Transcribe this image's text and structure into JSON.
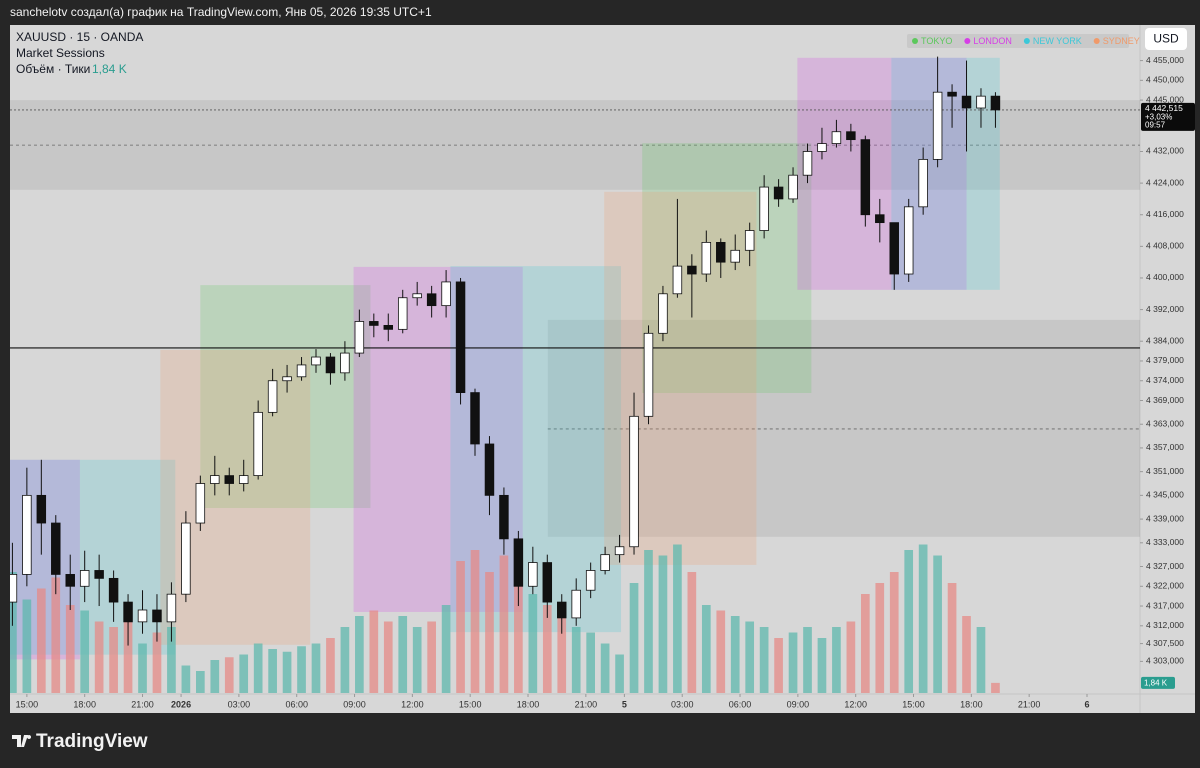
{
  "header": "sanchelotv создал(а) график на TradingView.com, Янв 05, 2026 19:35 UTC+1",
  "footer": "TradingView",
  "chart_data": {
    "type": "candlestick",
    "title": "XAUUSD · 15 · OANDA",
    "indicator": "Market Sessions",
    "currency": "USD",
    "up_color": "#ffffff",
    "down_color": "#111111",
    "grid": false,
    "x": [
      -3,
      0,
      3,
      6,
      9,
      12,
      15,
      18,
      21,
      24,
      27,
      30,
      33,
      36,
      39,
      42,
      45,
      48,
      51,
      54,
      57,
      60,
      63,
      66,
      69,
      72,
      75,
      78,
      81,
      84,
      87,
      90,
      93,
      96,
      99,
      102,
      105,
      108,
      111,
      114,
      117,
      120,
      123,
      126,
      129,
      132,
      135,
      138,
      141,
      144,
      147,
      150,
      153,
      156,
      159,
      162,
      165,
      168,
      171,
      174,
      177,
      180,
      183,
      186,
      189,
      192,
      195,
      198,
      201
    ],
    "open": [
      4318,
      4325,
      4345,
      4338,
      4325,
      4322,
      4326,
      4324,
      4318,
      4313,
      4316,
      4313,
      4320,
      4338,
      4348,
      4350,
      4348,
      4350,
      4366,
      4374,
      4375,
      4378,
      4380,
      4376,
      4381,
      4389,
      4388,
      4387,
      4395,
      4396,
      4393,
      4399,
      4371,
      4358,
      4345,
      4334,
      4322,
      4328,
      4318,
      4314,
      4321,
      4326,
      4330,
      4332,
      4365,
      4386,
      4396,
      4403,
      4401,
      4409,
      4404,
      4407,
      4412,
      4423,
      4420,
      4426,
      4432,
      4434,
      4437,
      4435,
      4416,
      4414,
      4401,
      4418,
      4430,
      4447,
      4446,
      4443,
      4446
    ],
    "high": [
      4333,
      4352,
      4354,
      4340,
      4330,
      4331,
      4330,
      4326,
      4320,
      4321,
      4320,
      4323,
      4341,
      4350,
      4355,
      4352,
      4354,
      4369,
      4377,
      4378,
      4380,
      4382,
      4381,
      4384,
      4392,
      4391,
      4391,
      4397,
      4399,
      4398,
      4402,
      4400,
      4372,
      4360,
      4347,
      4336,
      4332,
      4330,
      4320,
      4324,
      4328,
      4332,
      4335,
      4371,
      4388,
      4398,
      4420,
      4406,
      4412,
      4410,
      4411,
      4414,
      4426,
      4425,
      4428,
      4434,
      4438,
      4440,
      4439,
      4436,
      4420,
      4414,
      4420,
      4433,
      4456,
      4449,
      4455,
      4448,
      4447
    ],
    "low": [
      4312,
      4322,
      4330,
      4320,
      4316,
      4318,
      4317,
      4313,
      4307,
      4310,
      4308,
      4308,
      4318,
      4336,
      4345,
      4345,
      4346,
      4349,
      4365,
      4371,
      4374,
      4376,
      4373,
      4374,
      4380,
      4385,
      4384,
      4386,
      4393,
      4390,
      4390,
      4368,
      4355,
      4340,
      4330,
      4317,
      4320,
      4314,
      4310,
      4312,
      4319,
      4325,
      4328,
      4330,
      4363,
      4384,
      4395,
      4390,
      4399,
      4400,
      4402,
      4403,
      4410,
      4418,
      4419,
      4424,
      4430,
      4433,
      4432,
      4413,
      4409,
      4397,
      4399,
      4416,
      4428,
      4438,
      4432,
      4438,
      4438
    ],
    "close": [
      4325,
      4345,
      4338,
      4325,
      4322,
      4326,
      4324,
      4318,
      4313,
      4316,
      4313,
      4320,
      4338,
      4348,
      4350,
      4348,
      4350,
      4366,
      4374,
      4375,
      4378,
      4380,
      4376,
      4381,
      4389,
      4388,
      4387,
      4395,
      4396,
      4393,
      4399,
      4371,
      4358,
      4345,
      4334,
      4322,
      4328,
      4318,
      4314,
      4321,
      4326,
      4330,
      4332,
      4365,
      4386,
      4396,
      4403,
      4401,
      4409,
      4404,
      4407,
      4412,
      4423,
      4420,
      4426,
      4432,
      4434,
      4437,
      4435,
      4416,
      4414,
      4401,
      4418,
      4430,
      4447,
      4446,
      4443,
      4446,
      4442.515
    ],
    "volume": {
      "name": "Объём · Тики",
      "up_color": "#5fb8ae",
      "down_color": "#e58b87",
      "ylim": [
        0,
        40000
      ],
      "values": [
        22000,
        17000,
        19000,
        21000,
        16000,
        15000,
        13000,
        12000,
        14000,
        9000,
        11000,
        12000,
        5000,
        4000,
        6000,
        6500,
        7000,
        9000,
        8000,
        7500,
        8500,
        9000,
        10000,
        12000,
        14000,
        15000,
        13000,
        14000,
        12000,
        13000,
        16000,
        24000,
        26000,
        22000,
        25000,
        20000,
        18000,
        16000,
        15000,
        12000,
        11000,
        9000,
        7000,
        20000,
        26000,
        25000,
        27000,
        22000,
        16000,
        15000,
        14000,
        13000,
        12000,
        10000,
        11000,
        12000,
        10000,
        12000,
        13000,
        18000,
        20000,
        22000,
        26000,
        27000,
        25000,
        20000,
        14000,
        12000,
        1840
      ],
      "value_labels": [
        null,
        null,
        null,
        null,
        null,
        null,
        null,
        null,
        null,
        null,
        null,
        null,
        null,
        null,
        null,
        null,
        null,
        null,
        null,
        null,
        null,
        null,
        null,
        null,
        null,
        null,
        null,
        null,
        null,
        null,
        null,
        null,
        null,
        null,
        null,
        null,
        null,
        null,
        null,
        null,
        null,
        null,
        null,
        null,
        null,
        null,
        null,
        null,
        null,
        null,
        null,
        null,
        null,
        null,
        null,
        null,
        null,
        null,
        null,
        null,
        null,
        null,
        null,
        null,
        null,
        null,
        null,
        null,
        "1,84 K"
      ]
    },
    "xlim": [
      -3.5,
      231
    ],
    "xticks": [
      {
        "value": 0,
        "label": "15:00"
      },
      {
        "value": 12,
        "label": "18:00"
      },
      {
        "value": 24,
        "label": "21:00"
      },
      {
        "value": 32,
        "label": "2026"
      },
      {
        "value": 44,
        "label": "03:00"
      },
      {
        "value": 56,
        "label": "06:00"
      },
      {
        "value": 68,
        "label": "09:00"
      },
      {
        "value": 80,
        "label": "12:00"
      },
      {
        "value": 92,
        "label": "15:00"
      },
      {
        "value": 104,
        "label": "18:00"
      },
      {
        "value": 116,
        "label": "21:00"
      },
      {
        "value": 124,
        "label": "5"
      },
      {
        "value": 136,
        "label": "03:00"
      },
      {
        "value": 148,
        "label": "06:00"
      },
      {
        "value": 160,
        "label": "09:00"
      },
      {
        "value": 172,
        "label": "12:00"
      },
      {
        "value": 184,
        "label": "15:00"
      },
      {
        "value": 196,
        "label": "18:00"
      },
      {
        "value": 208,
        "label": "21:00"
      },
      {
        "value": 220,
        "label": "6"
      }
    ],
    "ylim": [
      4295,
      4464
    ],
    "yticks": [
      {
        "value": 4455,
        "label": "4 455,000"
      },
      {
        "value": 4450,
        "label": "4 450,000"
      },
      {
        "value": 4445,
        "label": "4 445,000"
      },
      {
        "value": 4432,
        "label": "4 432,000"
      },
      {
        "value": 4424,
        "label": "4 424,000"
      },
      {
        "value": 4416,
        "label": "4 416,000"
      },
      {
        "value": 4408,
        "label": "4 408,000"
      },
      {
        "value": 4400,
        "label": "4 400,000"
      },
      {
        "value": 4392,
        "label": "4 392,000"
      },
      {
        "value": 4384,
        "label": "4 384,000"
      },
      {
        "value": 4379,
        "label": "4 379,000"
      },
      {
        "value": 4374,
        "label": "4 374,000"
      },
      {
        "value": 4369,
        "label": "4 369,000"
      },
      {
        "value": 4363,
        "label": "4 363,000"
      },
      {
        "value": 4357,
        "label": "4 357,000"
      },
      {
        "value": 4351,
        "label": "4 351,000"
      },
      {
        "value": 4345,
        "label": "4 345,000"
      },
      {
        "value": 4339,
        "label": "4 339,000"
      },
      {
        "value": 4333,
        "label": "4 333,000"
      },
      {
        "value": 4327,
        "label": "4 327,000"
      },
      {
        "value": 4322,
        "label": "4 322,000"
      },
      {
        "value": 4317,
        "label": "4 317,000"
      },
      {
        "value": 4312,
        "label": "4 312,000"
      },
      {
        "value": 4307.5,
        "label": "4 307,500"
      },
      {
        "value": 4303,
        "label": "4 303,000"
      }
    ],
    "last_price": {
      "value": 4442.515,
      "label": "4 442,515",
      "change": "+3,03%",
      "countdown": "09:57"
    },
    "levels": [
      {
        "value": 4382.3,
        "color": "#111111"
      }
    ],
    "zones": [
      {
        "x0": -3.5,
        "x1": 231,
        "high": 4445,
        "low": 4422.3,
        "mid": 4433.6
      },
      {
        "x0": 108.1,
        "x1": 231,
        "high": 4389.4,
        "low": 4334.5,
        "mid": 4361.8
      }
    ],
    "sessions": [
      {
        "name": "TOKYO",
        "color": "#5cc85c",
        "boxes": [
          {
            "start": 36,
            "end": 71.3,
            "high": 4398.2,
            "low": 4341.8
          },
          {
            "start": 127.7,
            "end": 162.8,
            "high": 4434.1,
            "low": 4370.9
          }
        ]
      },
      {
        "name": "LONDON",
        "color": "#d63ee6",
        "boxes": [
          {
            "start": -3.5,
            "end": 11,
            "high": 4354,
            "low": 4303.5
          },
          {
            "start": 67.8,
            "end": 102.9,
            "high": 4402.8,
            "low": 4315.5
          },
          {
            "start": 159.9,
            "end": 195,
            "high": 4455.7,
            "low": 4397
          }
        ]
      },
      {
        "name": "NEW YORK",
        "color": "#3cc8d8",
        "boxes": [
          {
            "start": -3.5,
            "end": 30.8,
            "high": 4354,
            "low": 4304.7
          },
          {
            "start": 87.9,
            "end": 123.3,
            "high": 4403,
            "low": 4310.4
          },
          {
            "start": 179.4,
            "end": 201.9,
            "high": 4455.7,
            "low": 4397
          }
        ]
      },
      {
        "name": "SYDNEY",
        "color": "#f09a6a",
        "boxes": [
          {
            "start": 27.7,
            "end": 58.8,
            "high": 4381.8,
            "low": 4307.2
          },
          {
            "start": 119.8,
            "end": 151.4,
            "high": 4421.8,
            "low": 4327.4
          }
        ]
      }
    ]
  }
}
